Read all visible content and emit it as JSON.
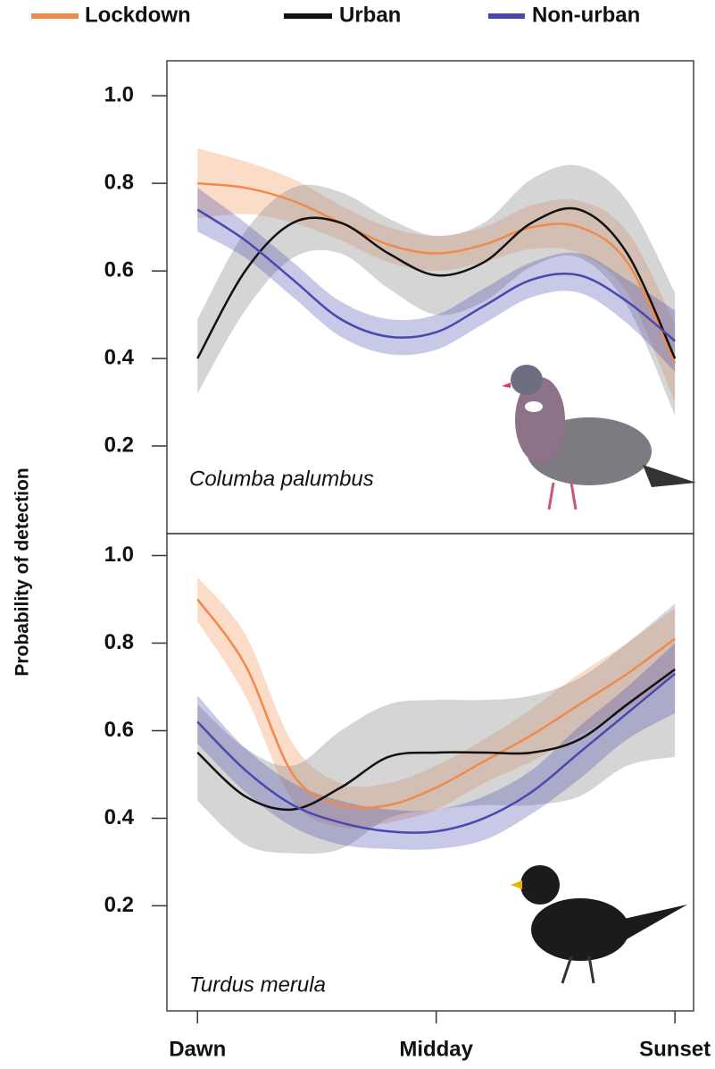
{
  "y_label": "Probability of detection",
  "chart_data": [
    {
      "type": "line",
      "annotation": "Columba palumbus",
      "x": [
        0,
        0.1,
        0.2,
        0.3,
        0.4,
        0.5,
        0.6,
        0.7,
        0.8,
        0.9,
        1.0
      ],
      "xlim": [
        -0.064,
        1.039
      ],
      "ylim": [
        0,
        1.08
      ],
      "yticks": [
        0.2,
        0.4,
        0.6,
        0.8,
        {
          "value": 1,
          "label": "1.0"
        }
      ],
      "series": [
        {
          "name": "Lockdown",
          "color": "#f08a4b",
          "values": [
            0.8,
            0.79,
            0.76,
            0.71,
            0.66,
            0.64,
            0.66,
            0.7,
            0.7,
            0.62,
            0.39
          ],
          "lower": [
            0.72,
            0.73,
            0.71,
            0.67,
            0.62,
            0.6,
            0.62,
            0.65,
            0.64,
            0.55,
            0.3
          ],
          "upper": [
            0.88,
            0.85,
            0.81,
            0.75,
            0.7,
            0.68,
            0.7,
            0.75,
            0.76,
            0.69,
            0.48
          ]
        },
        {
          "name": "Urban",
          "color": "#111111",
          "values": [
            0.4,
            0.6,
            0.71,
            0.71,
            0.64,
            0.59,
            0.62,
            0.71,
            0.74,
            0.64,
            0.4
          ],
          "lower": [
            0.32,
            0.51,
            0.63,
            0.64,
            0.56,
            0.5,
            0.53,
            0.61,
            0.63,
            0.52,
            0.27
          ],
          "upper": [
            0.49,
            0.69,
            0.79,
            0.78,
            0.72,
            0.68,
            0.71,
            0.81,
            0.84,
            0.76,
            0.55
          ]
        },
        {
          "name": "Non-urban",
          "color": "#4a48b0",
          "values": [
            0.74,
            0.67,
            0.58,
            0.49,
            0.45,
            0.46,
            0.52,
            0.58,
            0.59,
            0.53,
            0.44
          ],
          "lower": [
            0.69,
            0.63,
            0.54,
            0.45,
            0.41,
            0.42,
            0.48,
            0.54,
            0.55,
            0.48,
            0.37
          ],
          "upper": [
            0.79,
            0.71,
            0.62,
            0.53,
            0.49,
            0.5,
            0.56,
            0.62,
            0.64,
            0.58,
            0.51
          ]
        }
      ]
    },
    {
      "type": "line",
      "annotation": "Turdus merula",
      "x": [
        0,
        0.1,
        0.2,
        0.3,
        0.4,
        0.5,
        0.6,
        0.7,
        0.8,
        0.9,
        1.0
      ],
      "xlim": [
        -0.064,
        1.039
      ],
      "ylim": [
        -0.04,
        1.05
      ],
      "xticks": [
        {
          "value": 0,
          "label": "Dawn"
        },
        {
          "value": 0.5,
          "label": "Midday"
        },
        {
          "value": 1,
          "label": "Sunset"
        }
      ],
      "yticks": [
        0.2,
        0.4,
        0.6,
        0.8,
        {
          "value": 1,
          "label": "1.0"
        }
      ],
      "series": [
        {
          "color": "#f08a4b",
          "values": [
            0.9,
            0.75,
            0.5,
            0.43,
            0.43,
            0.47,
            0.53,
            0.59,
            0.66,
            0.73,
            0.81
          ],
          "lower": [
            0.85,
            0.68,
            0.44,
            0.38,
            0.39,
            0.42,
            0.48,
            0.53,
            0.59,
            0.65,
            0.73
          ],
          "upper": [
            0.95,
            0.82,
            0.57,
            0.48,
            0.48,
            0.52,
            0.58,
            0.65,
            0.73,
            0.8,
            0.88
          ]
        },
        {
          "color": "#111111",
          "values": [
            0.55,
            0.45,
            0.42,
            0.47,
            0.54,
            0.55,
            0.55,
            0.55,
            0.58,
            0.66,
            0.74
          ],
          "lower": [
            0.44,
            0.34,
            0.32,
            0.33,
            0.4,
            0.42,
            0.43,
            0.43,
            0.45,
            0.52,
            0.54
          ],
          "upper": [
            0.66,
            0.56,
            0.52,
            0.6,
            0.66,
            0.67,
            0.67,
            0.68,
            0.72,
            0.8,
            0.89
          ]
        },
        {
          "color": "#4a48b0",
          "values": [
            0.62,
            0.51,
            0.43,
            0.39,
            0.37,
            0.37,
            0.4,
            0.46,
            0.55,
            0.64,
            0.73
          ],
          "lower": [
            0.57,
            0.46,
            0.38,
            0.34,
            0.33,
            0.33,
            0.35,
            0.41,
            0.49,
            0.58,
            0.64
          ],
          "upper": [
            0.68,
            0.56,
            0.48,
            0.44,
            0.42,
            0.42,
            0.45,
            0.51,
            0.61,
            0.7,
            0.8
          ]
        }
      ]
    }
  ]
}
